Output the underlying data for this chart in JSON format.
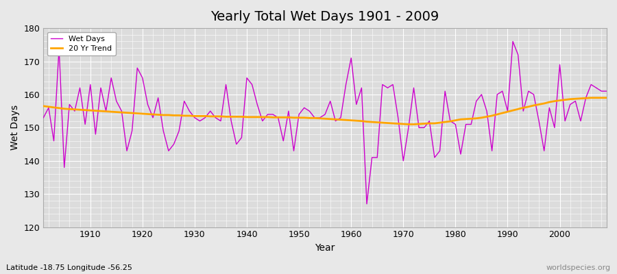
{
  "title": "Yearly Total Wet Days 1901 - 2009",
  "xlabel": "Year",
  "ylabel": "Wet Days",
  "ylim": [
    120,
    180
  ],
  "yticks": [
    120,
    130,
    140,
    150,
    160,
    170,
    180
  ],
  "fig_bg_color": "#e8e8e8",
  "plot_bg_color": "#dcdcdc",
  "wet_days_color": "#CC00CC",
  "trend_color": "#FFA500",
  "wet_days_label": "Wet Days",
  "trend_label": "20 Yr Trend",
  "subtitle": "Latitude -18.75 Longitude -56.25",
  "watermark": "worldspecies.org",
  "years": [
    1901,
    1902,
    1903,
    1904,
    1905,
    1906,
    1907,
    1908,
    1909,
    1910,
    1911,
    1912,
    1913,
    1914,
    1915,
    1916,
    1917,
    1918,
    1919,
    1920,
    1921,
    1922,
    1923,
    1924,
    1925,
    1926,
    1927,
    1928,
    1929,
    1930,
    1931,
    1932,
    1933,
    1934,
    1935,
    1936,
    1937,
    1938,
    1939,
    1940,
    1941,
    1942,
    1943,
    1944,
    1945,
    1946,
    1947,
    1948,
    1949,
    1950,
    1951,
    1952,
    1953,
    1954,
    1955,
    1956,
    1957,
    1958,
    1959,
    1960,
    1961,
    1962,
    1963,
    1964,
    1965,
    1966,
    1967,
    1968,
    1969,
    1970,
    1971,
    1972,
    1973,
    1974,
    1975,
    1976,
    1977,
    1978,
    1979,
    1980,
    1981,
    1982,
    1983,
    1984,
    1985,
    1986,
    1987,
    1988,
    1989,
    1990,
    1991,
    1992,
    1993,
    1994,
    1995,
    1996,
    1997,
    1998,
    1999,
    2000,
    2001,
    2002,
    2003,
    2004,
    2005,
    2006,
    2007,
    2008,
    2009
  ],
  "wet_days": [
    153,
    156,
    146,
    174,
    138,
    157,
    155,
    162,
    151,
    163,
    148,
    162,
    155,
    165,
    158,
    155,
    143,
    149,
    168,
    165,
    157,
    153,
    159,
    149,
    143,
    145,
    149,
    158,
    155,
    153,
    152,
    153,
    155,
    153,
    152,
    163,
    152,
    145,
    147,
    165,
    163,
    157,
    152,
    154,
    154,
    153,
    146,
    155,
    143,
    154,
    156,
    155,
    153,
    153,
    154,
    158,
    152,
    153,
    163,
    171,
    157,
    162,
    127,
    141,
    141,
    163,
    162,
    163,
    153,
    140,
    150,
    162,
    150,
    150,
    152,
    141,
    143,
    161,
    152,
    151,
    142,
    151,
    151,
    158,
    160,
    155,
    143,
    160,
    161,
    155,
    176,
    172,
    155,
    161,
    160,
    152,
    143,
    156,
    150,
    169,
    152,
    157,
    158,
    152,
    159,
    163,
    162,
    161,
    161
  ],
  "trend_values": [
    156.5,
    156.3,
    156.1,
    155.9,
    155.7,
    155.6,
    155.5,
    155.4,
    155.3,
    155.2,
    155.1,
    155.0,
    154.9,
    154.8,
    154.7,
    154.6,
    154.5,
    154.4,
    154.3,
    154.2,
    154.1,
    154.0,
    153.9,
    153.8,
    153.8,
    153.7,
    153.7,
    153.6,
    153.6,
    153.5,
    153.5,
    153.5,
    153.4,
    153.4,
    153.4,
    153.3,
    153.3,
    153.3,
    153.3,
    153.2,
    153.2,
    153.2,
    153.2,
    153.2,
    153.1,
    153.1,
    153.1,
    153.1,
    153.0,
    153.0,
    153.0,
    152.9,
    152.9,
    152.8,
    152.7,
    152.6,
    152.5,
    152.4,
    152.3,
    152.2,
    152.1,
    152.0,
    151.8,
    151.7,
    151.6,
    151.5,
    151.4,
    151.3,
    151.2,
    151.1,
    151.0,
    151.0,
    151.1,
    151.2,
    151.3,
    151.3,
    151.5,
    151.7,
    151.9,
    152.2,
    152.5,
    152.6,
    152.7,
    152.8,
    153.0,
    153.3,
    153.6,
    154.0,
    154.4,
    154.8,
    155.2,
    155.6,
    156.0,
    156.3,
    156.7,
    157.0,
    157.3,
    157.7,
    158.0,
    158.2,
    158.4,
    158.6,
    158.7,
    158.8,
    158.9,
    159.0,
    159.0,
    159.0,
    159.0
  ],
  "xticks": [
    1910,
    1920,
    1930,
    1940,
    1950,
    1960,
    1970,
    1980,
    1990,
    2000
  ],
  "title_fontsize": 14,
  "axis_label_fontsize": 10,
  "tick_fontsize": 9,
  "subtitle_fontsize": 8,
  "watermark_fontsize": 8
}
